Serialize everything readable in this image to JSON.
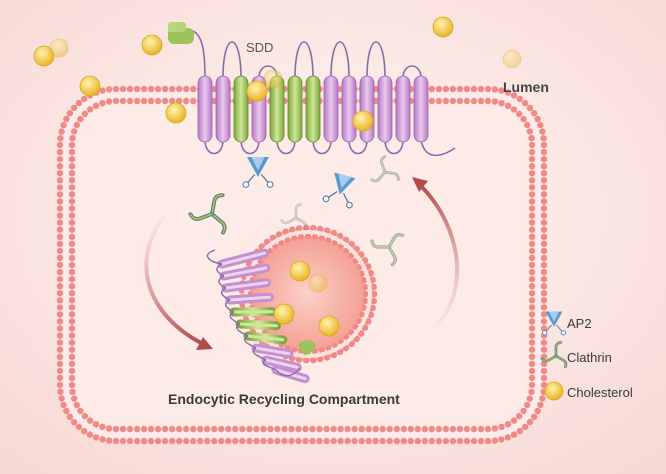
{
  "labels": {
    "sdd": "SDD",
    "lumen": "Lumen",
    "compartment": "Endocytic Recycling Compartment"
  },
  "legend": [
    {
      "icon": "ap2-icon",
      "label": "AP2"
    },
    {
      "icon": "clathrin-icon",
      "label": "Clathrin"
    },
    {
      "icon": "cholesterol-icon",
      "label": "Cholesterol"
    }
  ],
  "colors": {
    "background": "#fbe9e6",
    "membrane_bead": "#ef8a86",
    "membrane_core": "#fdeaea",
    "helix_purple": "#c58fd0",
    "helix_green": "#9cc25a",
    "ap2_blue": "#5a9ad0",
    "clathrin_teal": "#3d8f8a",
    "cholesterol": "#f3c63a",
    "arrow": "#b34a4c"
  }
}
